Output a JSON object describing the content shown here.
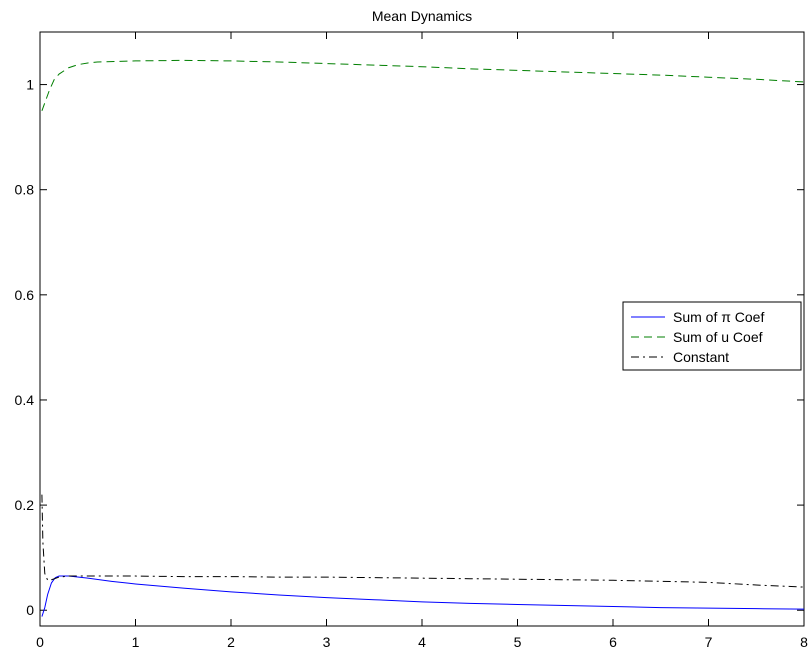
{
  "chart_data": {
    "type": "line",
    "title": "Mean Dynamics",
    "xlabel": "",
    "ylabel": "",
    "xlim": [
      0,
      8
    ],
    "ylim": [
      -0.03,
      1.1
    ],
    "xticks": [
      0,
      1,
      2,
      3,
      4,
      5,
      6,
      7,
      8
    ],
    "yticks": [
      0,
      0.2,
      0.4,
      0.6,
      0.8,
      1
    ],
    "xtick_labels": [
      "0",
      "1",
      "2",
      "3",
      "4",
      "5",
      "6",
      "7",
      "8"
    ],
    "ytick_labels": [
      "0",
      "0.2",
      "0.4",
      "0.6",
      "0.8",
      "1"
    ],
    "grid": false,
    "legend_position": "right",
    "series": [
      {
        "name": "Sum of π Coef",
        "color": "#0000ff",
        "style": "solid",
        "x": [
          0.02,
          0.05,
          0.08,
          0.12,
          0.16,
          0.2,
          0.3,
          0.5,
          0.75,
          1,
          1.5,
          2,
          2.5,
          3,
          3.5,
          4,
          4.5,
          5,
          5.5,
          6,
          6.5,
          7,
          7.5,
          8
        ],
        "y": [
          -0.012,
          0.005,
          0.03,
          0.052,
          0.062,
          0.065,
          0.065,
          0.061,
          0.055,
          0.05,
          0.042,
          0.035,
          0.029,
          0.024,
          0.02,
          0.016,
          0.013,
          0.011,
          0.009,
          0.007,
          0.005,
          0.004,
          0.003,
          0.002
        ]
      },
      {
        "name": "Sum of u Coef",
        "color": "#007f00",
        "style": "dashed",
        "x": [
          0.02,
          0.05,
          0.1,
          0.15,
          0.2,
          0.3,
          0.4,
          0.5,
          0.6,
          0.8,
          1,
          1.5,
          2,
          2.5,
          3,
          3.5,
          4,
          4.5,
          5,
          5.5,
          6,
          6.5,
          7,
          7.5,
          8
        ],
        "y": [
          0.95,
          0.965,
          0.99,
          1.01,
          1.02,
          1.032,
          1.038,
          1.041,
          1.043,
          1.044,
          1.045,
          1.046,
          1.045,
          1.043,
          1.04,
          1.037,
          1.034,
          1.03,
          1.027,
          1.024,
          1.021,
          1.018,
          1.014,
          1.01,
          1.005
        ]
      },
      {
        "name": "Constant",
        "color": "#000000",
        "style": "dashdot",
        "x": [
          0.02,
          0.03,
          0.05,
          0.08,
          0.12,
          0.2,
          0.3,
          0.5,
          1,
          1.5,
          2,
          2.5,
          3,
          3.5,
          4,
          4.5,
          5,
          5.5,
          6,
          6.5,
          7,
          7.5,
          8
        ],
        "y": [
          0.22,
          0.13,
          0.07,
          0.057,
          0.058,
          0.063,
          0.065,
          0.065,
          0.065,
          0.064,
          0.064,
          0.063,
          0.063,
          0.062,
          0.061,
          0.06,
          0.059,
          0.058,
          0.057,
          0.055,
          0.053,
          0.048,
          0.044
        ]
      }
    ]
  }
}
